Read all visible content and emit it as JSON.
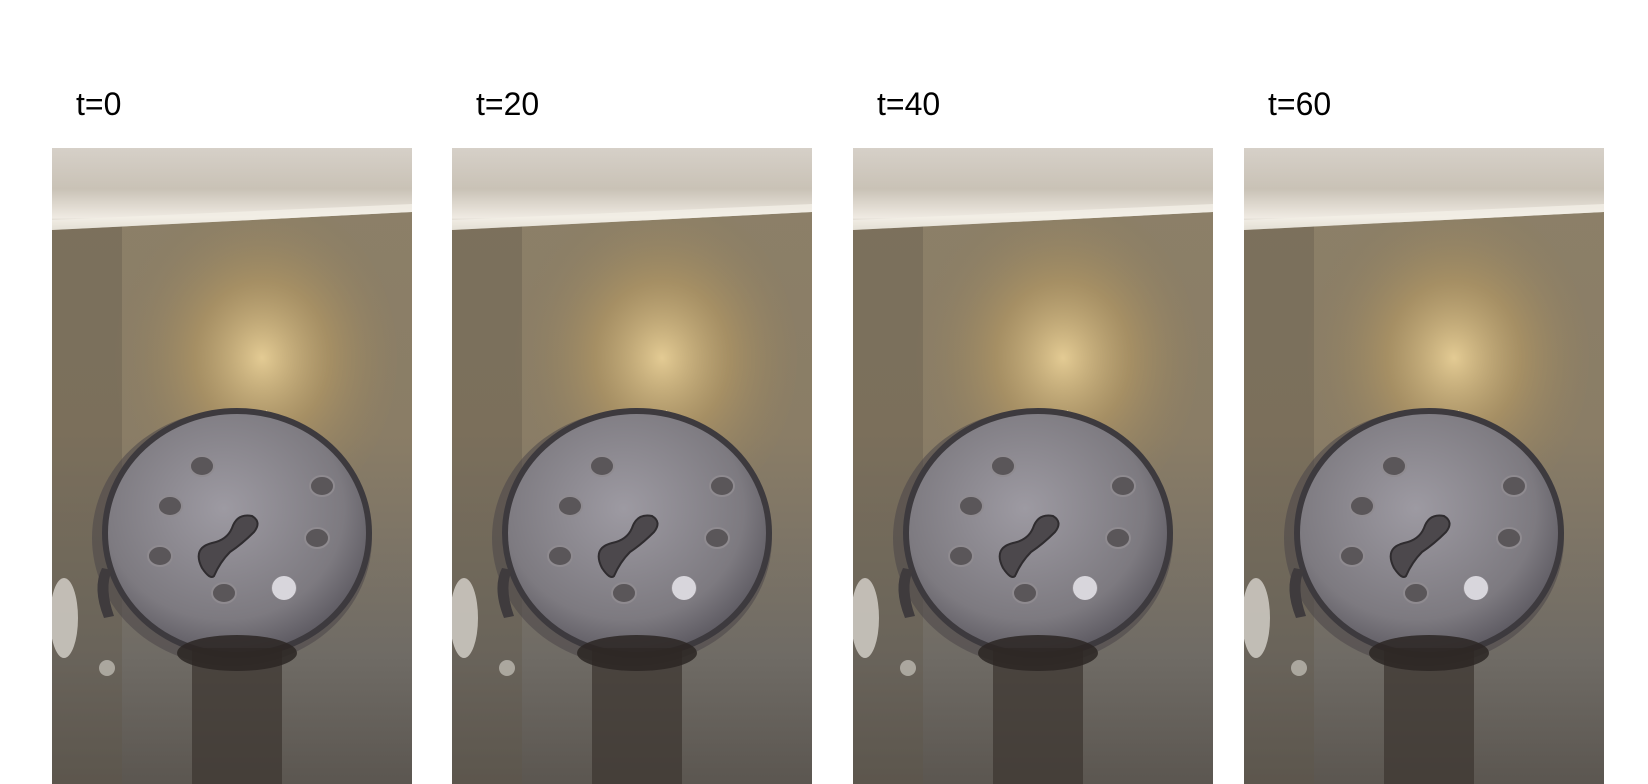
{
  "figure": {
    "panels": [
      {
        "label": "t=0"
      },
      {
        "label": "t=20"
      },
      {
        "label": "t=40"
      },
      {
        "label": "t=60"
      }
    ],
    "scene": "metal-valve-with-flame"
  }
}
